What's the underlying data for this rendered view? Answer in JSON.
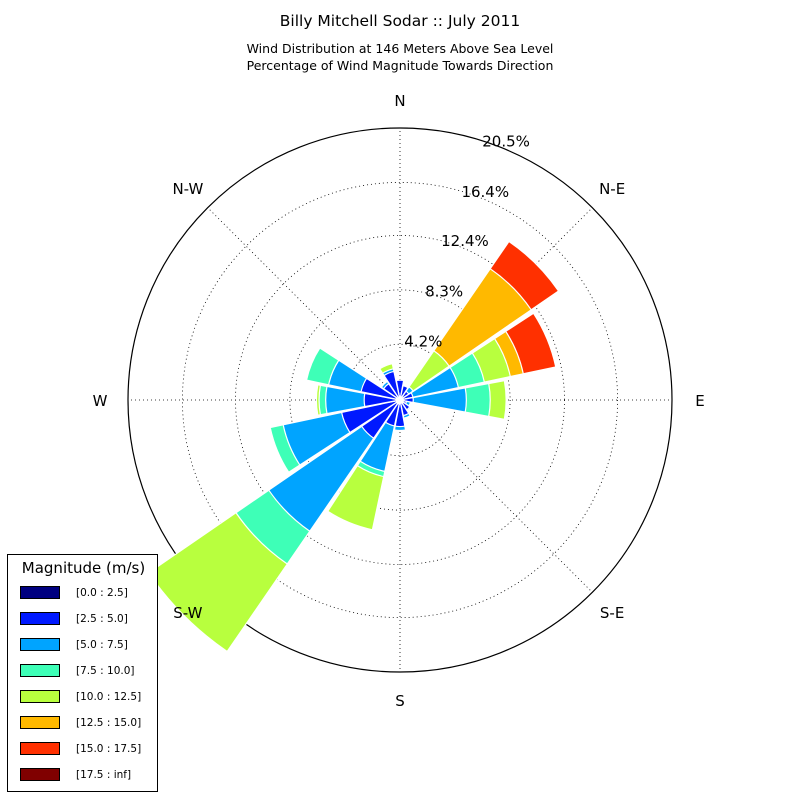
{
  "title": "Billy Mitchell Sodar :: July 2011",
  "subtitle_line1": "Wind Distribution at 146 Meters Above Sea Level",
  "subtitle_line2": "Percentage of Wind Magnitude Towards Direction",
  "chart_data": {
    "type": "windrose",
    "directions": [
      "N",
      "NNE",
      "NE",
      "ENE",
      "E",
      "ESE",
      "SE",
      "SSE",
      "S",
      "SSW",
      "SW",
      "WSW",
      "W",
      "WNW",
      "NW",
      "NNW"
    ],
    "direction_angles_deg": [
      0,
      22.5,
      45,
      67.5,
      90,
      112.5,
      135,
      157.5,
      180,
      202.5,
      225,
      247.5,
      270,
      292.5,
      315,
      337.5
    ],
    "compass_labels": [
      {
        "label": "N",
        "angle": 0
      },
      {
        "label": "N-E",
        "angle": 45
      },
      {
        "label": "E",
        "angle": 90
      },
      {
        "label": "S-E",
        "angle": 135
      },
      {
        "label": "S",
        "angle": 180
      },
      {
        "label": "S-W",
        "angle": 225
      },
      {
        "label": "W",
        "angle": 270
      },
      {
        "label": "N-W",
        "angle": 315
      }
    ],
    "radial_ticks": [
      4.2,
      8.3,
      12.4,
      16.4,
      20.5
    ],
    "radial_tick_labels": [
      "4.2%",
      "8.3%",
      "12.4%",
      "16.4%",
      "20.5%"
    ],
    "rmax": 20.5,
    "legend_title": "Magnitude (m/s)",
    "bins": [
      {
        "label": "[0.0 : 2.5]",
        "color": "#000080"
      },
      {
        "label": "[2.5 : 5.0]",
        "color": "#0019ff"
      },
      {
        "label": "[5.0 : 7.5]",
        "color": "#00a4ff"
      },
      {
        "label": "[7.5 : 10.0]",
        "color": "#3effb7"
      },
      {
        "label": "[10.0 : 12.5]",
        "color": "#b8ff3e"
      },
      {
        "label": "[12.5 : 15.0]",
        "color": "#ffb900"
      },
      {
        "label": "[15.0 : 17.5]",
        "color": "#ff3000"
      },
      {
        "label": "[17.5 : inf]",
        "color": "#800000"
      }
    ],
    "cumulative_percent": [
      [
        0.1,
        1.5,
        1.5,
        1.5,
        1.5,
        1.5,
        1.5,
        1.5
      ],
      [
        0.1,
        1.1,
        1.1,
        1.1,
        1.1,
        1.1,
        1.1,
        1.1
      ],
      [
        0.2,
        0.8,
        1.2,
        1.2,
        4.5,
        12.0,
        14.5,
        14.5
      ],
      [
        0.2,
        1.0,
        4.5,
        6.5,
        8.5,
        9.5,
        12.0,
        12.0
      ],
      [
        0.2,
        1.0,
        5.0,
        6.8,
        8.0,
        8.0,
        8.0,
        8.0
      ],
      [
        0.2,
        0.5,
        0.8,
        0.8,
        0.8,
        0.8,
        0.8,
        0.8
      ],
      [
        0.3,
        0.9,
        1.0,
        1.0,
        1.0,
        1.0,
        1.0,
        1.0
      ],
      [
        0.2,
        1.2,
        1.4,
        1.4,
        1.4,
        1.4,
        1.4,
        1.4
      ],
      [
        0.2,
        2.0,
        2.3,
        2.3,
        2.3,
        2.3,
        2.3,
        2.3
      ],
      [
        0.3,
        2.0,
        5.5,
        5.9,
        10.0,
        10.0,
        10.0,
        10.0
      ],
      [
        0.3,
        3.5,
        12.0,
        15.0,
        23.0,
        23.0,
        23.0,
        23.0
      ],
      [
        0.3,
        4.5,
        9.0,
        10.0,
        10.0,
        10.0,
        10.0,
        10.0
      ],
      [
        0.3,
        2.7,
        5.6,
        6.1,
        6.3,
        6.3,
        6.3,
        6.3
      ],
      [
        0.3,
        3.0,
        5.5,
        7.2,
        7.2,
        7.2,
        7.2,
        7.2
      ],
      [
        0.2,
        1.5,
        1.7,
        1.7,
        1.7,
        1.7,
        1.7,
        1.7
      ],
      [
        0.2,
        2.2,
        2.4,
        2.4,
        2.8,
        2.8,
        2.8,
        2.8
      ]
    ]
  }
}
